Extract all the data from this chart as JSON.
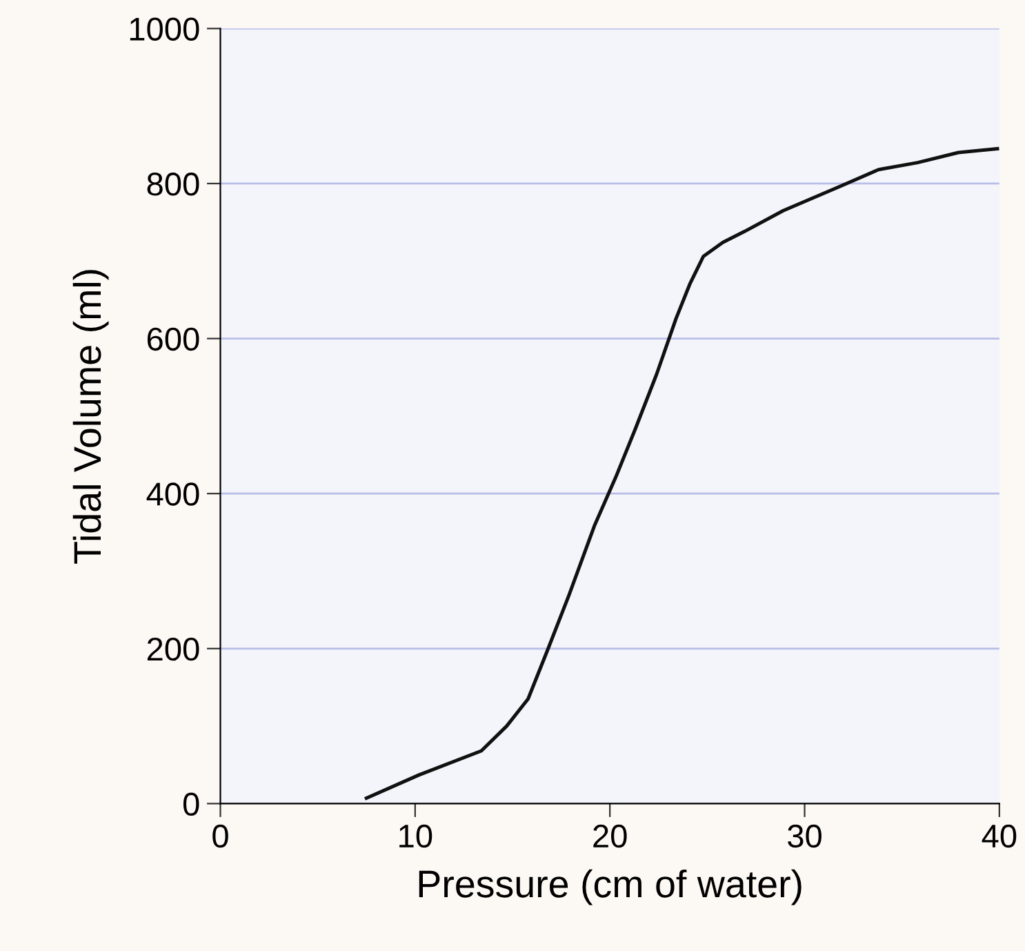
{
  "chart_data": {
    "type": "line",
    "xlabel": "Pressure (cm of water)",
    "ylabel": "Tidal Volume (ml)",
    "x": [
      7.5,
      10.2,
      13.4,
      14.7,
      15.8,
      16.8,
      17.9,
      19.2,
      20.3,
      21.3,
      22.4,
      23.4,
      24.1,
      24.8,
      25.8,
      26.9,
      28.9,
      31.7,
      33.8,
      35.8,
      37.9,
      39.9
    ],
    "series": [
      {
        "color": "#111111",
        "values": [
          7,
          37,
          68,
          100,
          135,
          198,
          269,
          358,
          421,
          483,
          554,
          626,
          670,
          706,
          724,
          738,
          765,
          795,
          818,
          827,
          840,
          845
        ]
      }
    ],
    "xlim": [
      0,
      40
    ],
    "xticks": [
      0,
      10,
      20,
      30,
      40
    ],
    "ylim": [
      0,
      1000
    ],
    "yticks": [
      0,
      200,
      400,
      600,
      800,
      1000
    ],
    "grid": "y",
    "marker": "none",
    "line_style": "solid"
  }
}
